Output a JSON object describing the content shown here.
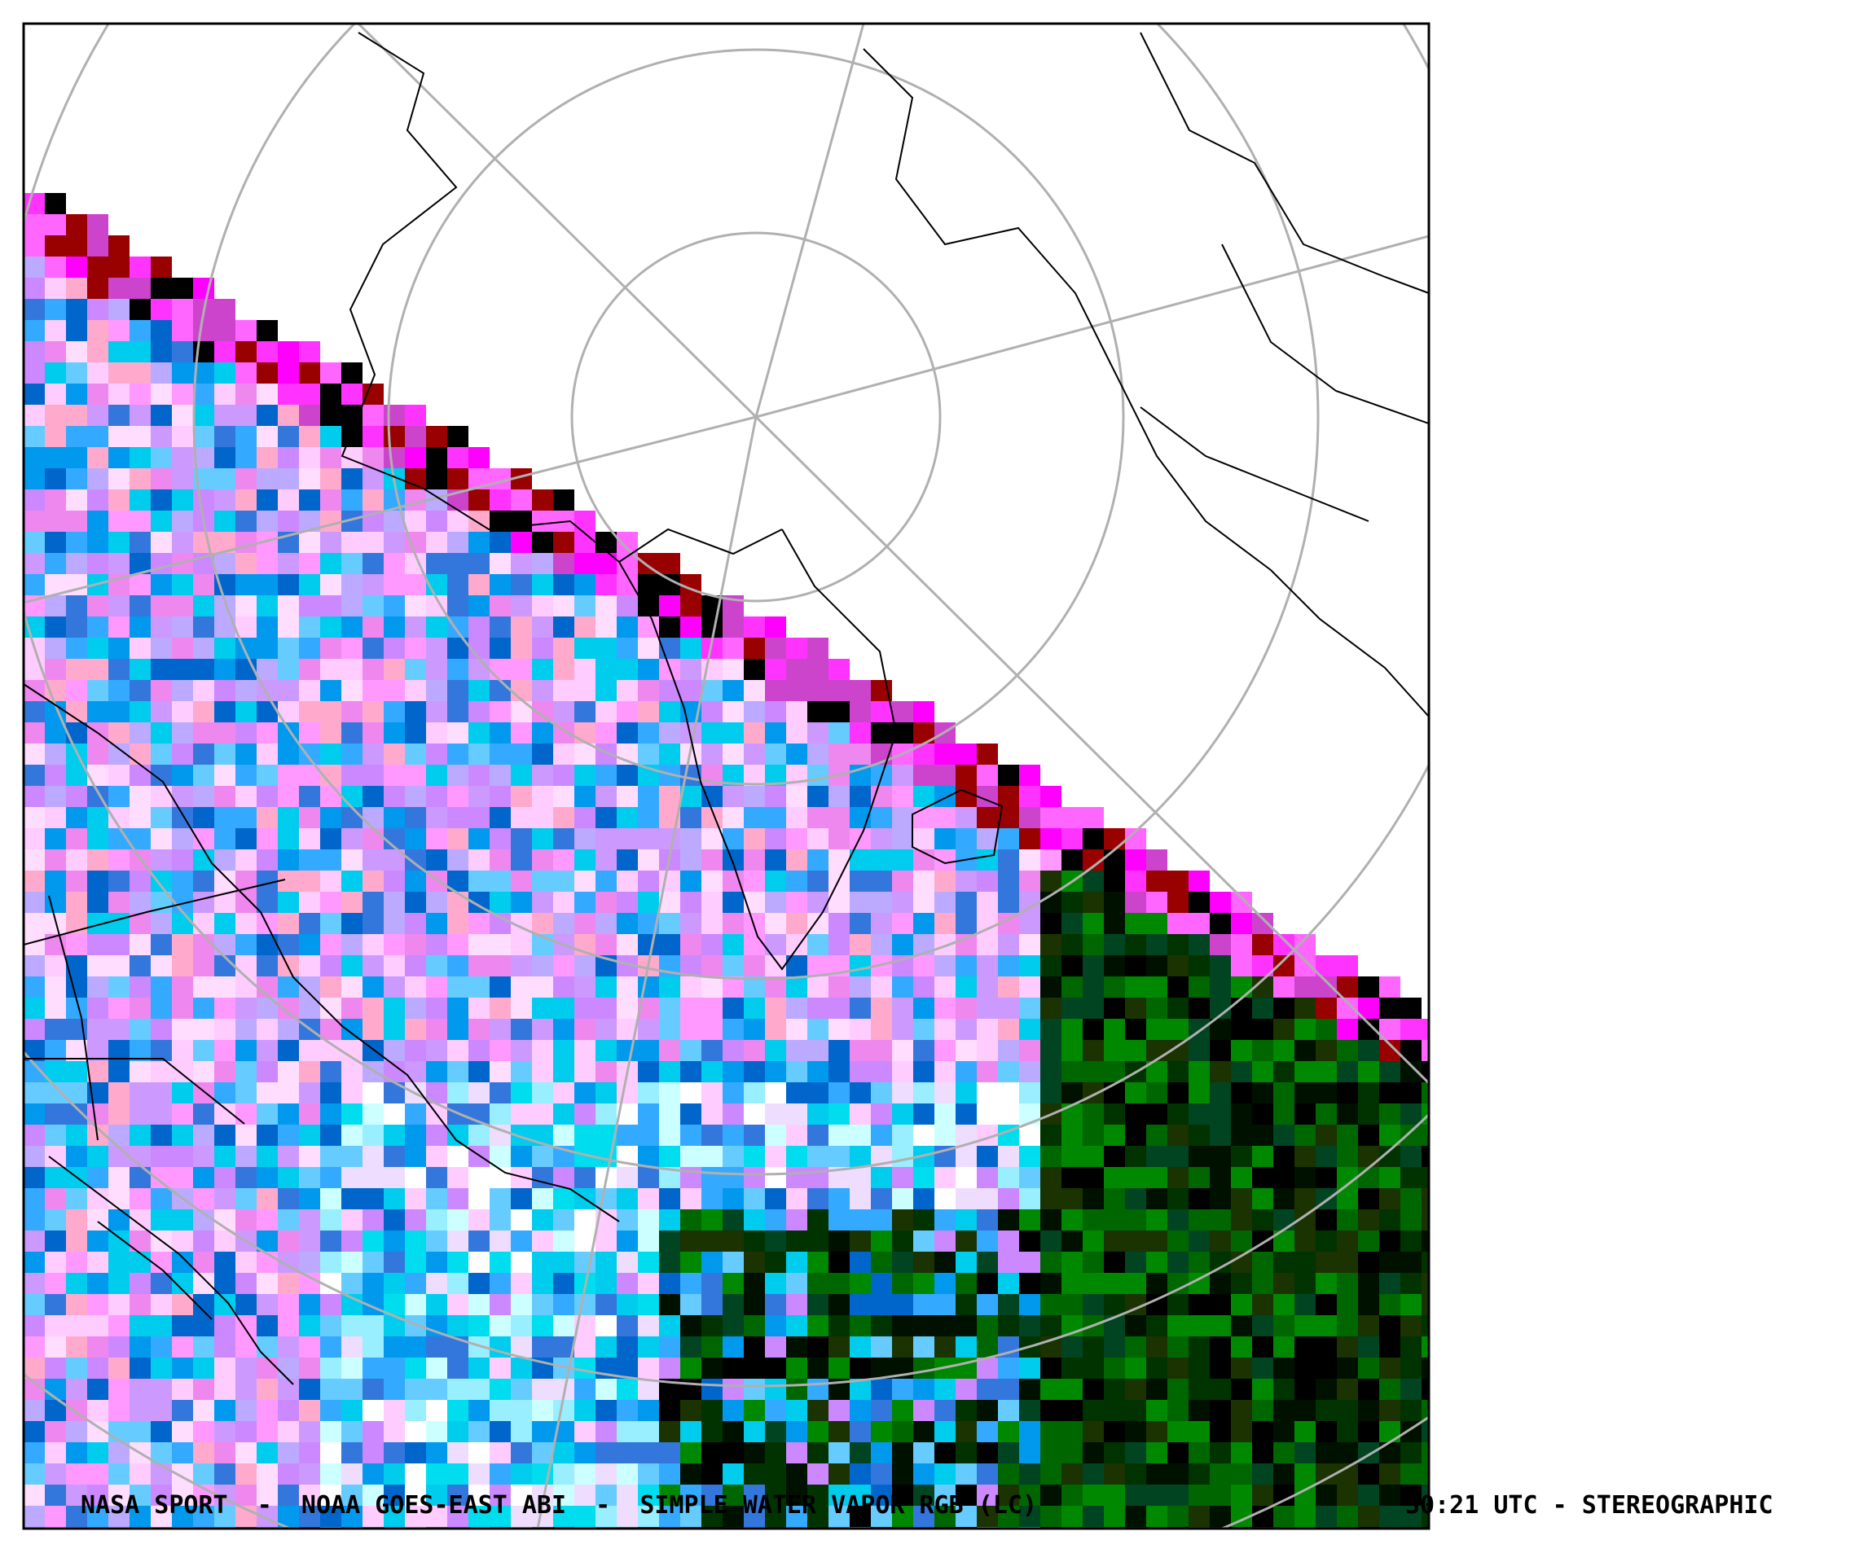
{
  "caption": {
    "left": "NASA SPORT  -  NOAA GOES-EAST ABI  -  SIMPLE WATER VAPOR RGB (LC)",
    "right": "30:21 UTC - STEREOGRAPHIC"
  }
}
